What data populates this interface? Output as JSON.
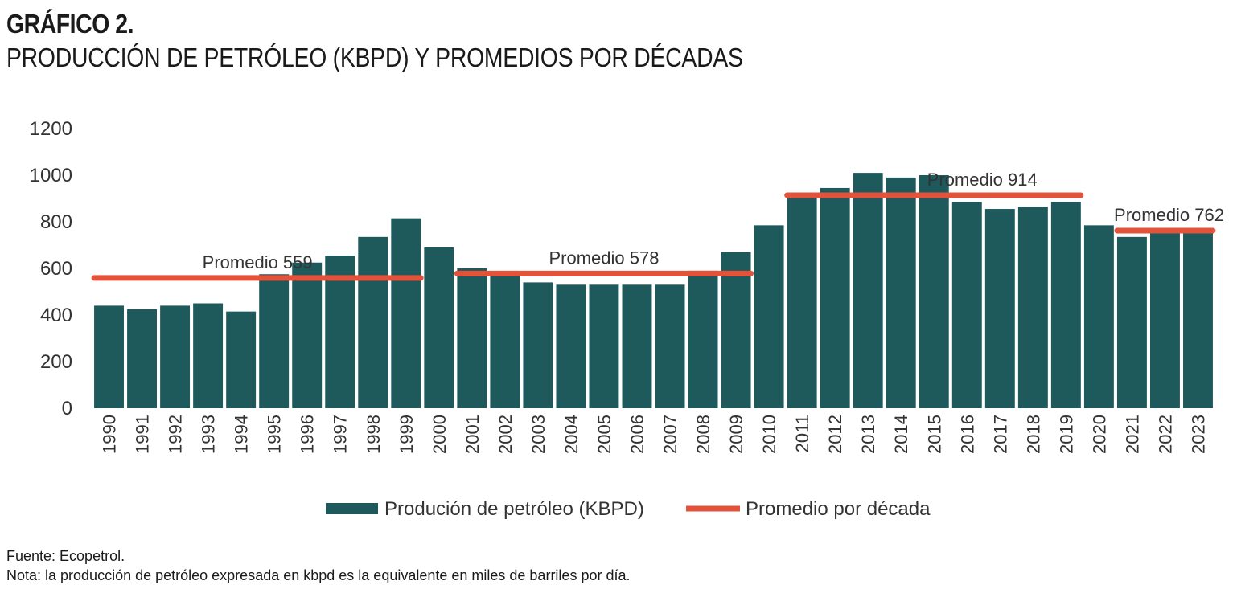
{
  "title": {
    "label": "GRÁFICO 2.",
    "subtitle": "PRODUCCIÓN DE PETRÓLEO (KBPD) Y PROMEDIOS POR DÉCADAS"
  },
  "colors": {
    "bar": "#1e5a5c",
    "average": "#e3533b",
    "bar_stroke": "#ffffff"
  },
  "chart_data": {
    "type": "bar",
    "title": "PRODUCCIÓN DE PETRÓLEO (KBPD) Y PROMEDIOS POR DÉCADAS",
    "xlabel": "",
    "ylabel": "",
    "ylim": [
      0,
      1200
    ],
    "yticks": [
      0,
      200,
      400,
      600,
      800,
      1000,
      1200
    ],
    "grid": false,
    "legend_position": "bottom",
    "categories": [
      "1990",
      "1991",
      "1992",
      "1993",
      "1994",
      "1995",
      "1996",
      "1997",
      "1998",
      "1999",
      "2000",
      "2001",
      "2002",
      "2003",
      "2004",
      "2005",
      "2006",
      "2007",
      "2008",
      "2009",
      "2010",
      "2011",
      "2012",
      "2013",
      "2014",
      "2015",
      "2016",
      "2017",
      "2018",
      "2019",
      "2020",
      "2021",
      "2022",
      "2023"
    ],
    "series": [
      {
        "name": "Produción de petróleo (KBPD)",
        "type": "bar",
        "values": [
          440,
          425,
          440,
          450,
          415,
          575,
          625,
          655,
          735,
          815,
          690,
          600,
          575,
          540,
          530,
          530,
          530,
          530,
          590,
          670,
          785,
          920,
          945,
          1010,
          990,
          1000,
          885,
          855,
          865,
          885,
          785,
          735,
          750,
          770
        ]
      },
      {
        "name": "Promedio por década",
        "type": "line",
        "segments": [
          {
            "from": "1990",
            "to": "1999",
            "value": 559,
            "label": "Promedio 559"
          },
          {
            "from": "2001",
            "to": "2009",
            "value": 578,
            "label": "Promedio 578"
          },
          {
            "from": "2011",
            "to": "2019",
            "value": 914,
            "label": "Promedio 914"
          },
          {
            "from": "2021",
            "to": "2023",
            "value": 762,
            "label": "Promedio 762"
          }
        ]
      }
    ]
  },
  "footnotes": {
    "source": "Fuente: Ecopetrol.",
    "note": "Nota: la producción de petróleo expresada en kbpd es la equivalente en miles de barriles por día."
  }
}
